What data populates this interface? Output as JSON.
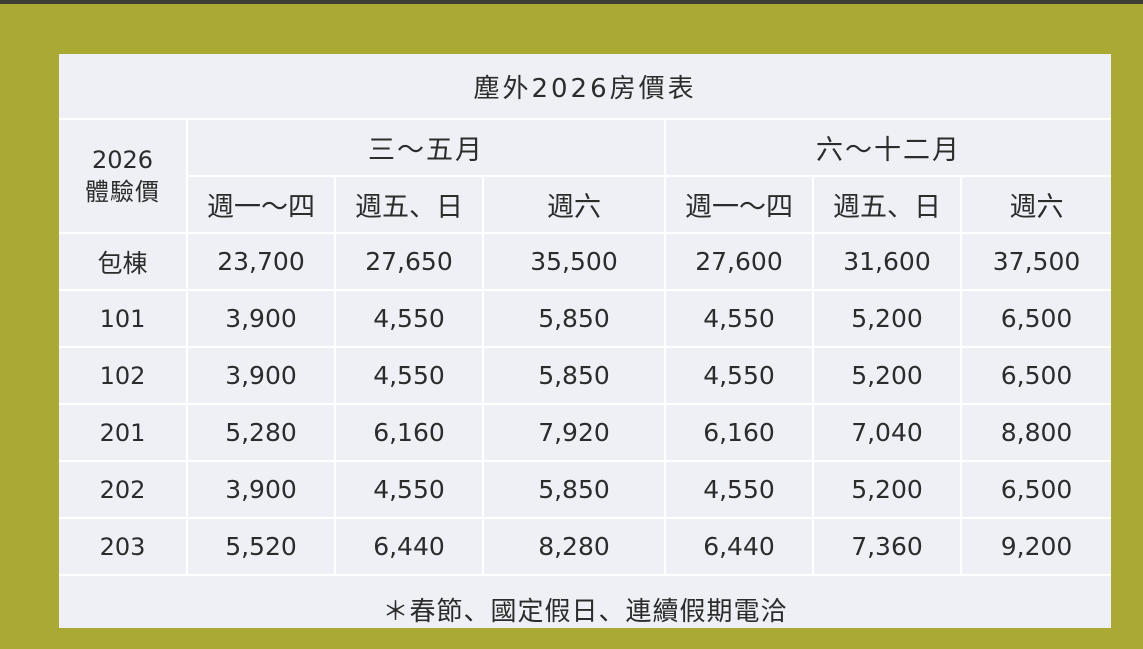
{
  "title": "塵外2026房價表",
  "corner": {
    "line1": "2026",
    "line2": "體驗價"
  },
  "seasons": [
    {
      "label": "三～五月",
      "days": [
        "週一～四",
        "週五、日",
        "週六"
      ]
    },
    {
      "label": "六～十二月",
      "days": [
        "週一～四",
        "週五、日",
        "週六"
      ]
    }
  ],
  "rows": [
    {
      "label": "包棟",
      "prices": [
        "23,700",
        "27,650",
        "35,500",
        "27,600",
        "31,600",
        "37,500"
      ]
    },
    {
      "label": "101",
      "prices": [
        "3,900",
        "4,550",
        "5,850",
        "4,550",
        "5,200",
        "6,500"
      ]
    },
    {
      "label": "102",
      "prices": [
        "3,900",
        "4,550",
        "5,850",
        "4,550",
        "5,200",
        "6,500"
      ]
    },
    {
      "label": "201",
      "prices": [
        "5,280",
        "6,160",
        "7,920",
        "6,160",
        "7,040",
        "8,800"
      ]
    },
    {
      "label": "202",
      "prices": [
        "3,900",
        "4,550",
        "5,850",
        "4,550",
        "5,200",
        "6,500"
      ]
    },
    {
      "label": "203",
      "prices": [
        "5,520",
        "6,440",
        "8,280",
        "6,440",
        "7,360",
        "9,200"
      ]
    }
  ],
  "note": "＊春節、國定假日、連續假期電洽",
  "colors": {
    "background": "#aaa933",
    "card": "#eef0f5",
    "grid_lines": "#ffffff",
    "text": "#2c2c2c"
  }
}
